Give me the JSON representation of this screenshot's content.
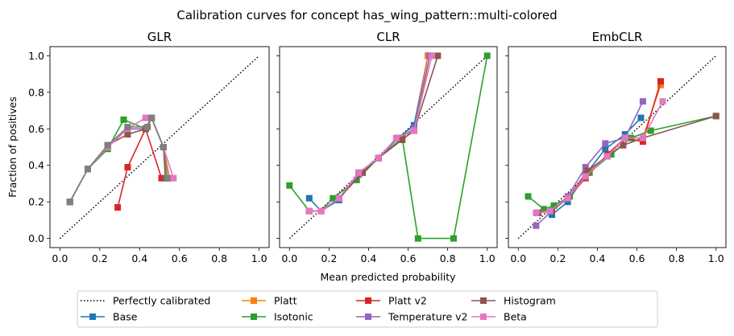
{
  "figure": {
    "suptitle": "Calibration curves for concept has_wing_pattern::multi-colored",
    "xlabel": "Mean predicted probability",
    "ylabel": "Fraction of positives"
  },
  "legend": {
    "placement": "bottom-center",
    "columns": 5,
    "entries": [
      {
        "name": "Perfectly calibrated",
        "color": "#000000",
        "style": "dotted"
      },
      {
        "name": "Base",
        "color": "#1f77b4",
        "style": "line-square"
      },
      {
        "name": "Platt",
        "color": "#ff7f0e",
        "style": "line-square"
      },
      {
        "name": "Isotonic",
        "color": "#2ca02c",
        "style": "line-square"
      },
      {
        "name": "Platt v2",
        "color": "#d62728",
        "style": "line-square"
      },
      {
        "name": "Temperature v2",
        "color": "#9467bd",
        "style": "line-square"
      },
      {
        "name": "Histogram",
        "color": "#8c564b",
        "style": "line-square"
      },
      {
        "name": "Beta",
        "color": "#e377c2",
        "style": "line-square"
      }
    ]
  },
  "chart_data": [
    {
      "type": "line",
      "title": "GLR",
      "xlim": [
        -0.05,
        1.05
      ],
      "ylim": [
        -0.05,
        1.05
      ],
      "xticks": [
        "0.0",
        "0.2",
        "0.4",
        "0.6",
        "0.8",
        "1.0"
      ],
      "yticks": [
        "0.0",
        "0.2",
        "0.4",
        "0.6",
        "0.8",
        "1.0"
      ],
      "series": [
        {
          "name": "Base",
          "color": "#1f77b4",
          "points": [
            [
              0.05,
              0.2
            ],
            [
              0.14,
              0.38
            ],
            [
              0.24,
              0.5
            ],
            [
              0.34,
              0.6
            ],
            [
              0.43,
              0.6
            ],
            [
              0.46,
              0.66
            ],
            [
              0.52,
              0.5
            ],
            [
              0.55,
              0.33
            ]
          ]
        },
        {
          "name": "Platt",
          "color": "#ff7f0e",
          "points": [
            [
              0.05,
              0.2
            ],
            [
              0.14,
              0.38
            ],
            [
              0.24,
              0.5
            ],
            [
              0.34,
              0.6
            ],
            [
              0.43,
              0.6
            ],
            [
              0.46,
              0.66
            ],
            [
              0.52,
              0.5
            ],
            [
              0.55,
              0.33
            ]
          ]
        },
        {
          "name": "Isotonic",
          "color": "#2ca02c",
          "points": [
            [
              0.05,
              0.2
            ],
            [
              0.14,
              0.38
            ],
            [
              0.24,
              0.49
            ],
            [
              0.32,
              0.65
            ],
            [
              0.43,
              0.6
            ],
            [
              0.46,
              0.66
            ],
            [
              0.52,
              0.5
            ],
            [
              0.53,
              0.33
            ]
          ]
        },
        {
          "name": "Platt v2",
          "color": "#d62728",
          "points": [
            [
              0.29,
              0.17
            ],
            [
              0.34,
              0.39
            ],
            [
              0.43,
              0.6
            ],
            [
              0.51,
              0.33
            ]
          ]
        },
        {
          "name": "Temperature v2",
          "color": "#9467bd",
          "points": [
            [
              0.05,
              0.2
            ],
            [
              0.14,
              0.38
            ],
            [
              0.24,
              0.51
            ],
            [
              0.34,
              0.6
            ],
            [
              0.43,
              0.6
            ],
            [
              0.46,
              0.66
            ],
            [
              0.52,
              0.5
            ]
          ]
        },
        {
          "name": "Histogram",
          "color": "#8c564b",
          "points": [
            [
              0.05,
              0.2
            ],
            [
              0.14,
              0.38
            ],
            [
              0.24,
              0.51
            ],
            [
              0.34,
              0.57
            ],
            [
              0.43,
              0.6
            ],
            [
              0.46,
              0.66
            ],
            [
              0.52,
              0.5
            ],
            [
              0.53,
              0.33
            ]
          ]
        },
        {
          "name": "Beta",
          "color": "#e377c2",
          "points": [
            [
              0.05,
              0.2
            ],
            [
              0.14,
              0.38
            ],
            [
              0.24,
              0.5
            ],
            [
              0.34,
              0.6
            ],
            [
              0.43,
              0.66
            ],
            [
              0.46,
              0.66
            ],
            [
              0.52,
              0.5
            ],
            [
              0.57,
              0.33
            ]
          ]
        },
        {
          "name": "",
          "color": "#7f7f7f",
          "points": [
            [
              0.05,
              0.2
            ],
            [
              0.14,
              0.38
            ],
            [
              0.24,
              0.51
            ],
            [
              0.34,
              0.61
            ],
            [
              0.44,
              0.61
            ],
            [
              0.46,
              0.66
            ],
            [
              0.52,
              0.5
            ],
            [
              0.54,
              0.33
            ]
          ]
        }
      ]
    },
    {
      "type": "line",
      "title": "CLR",
      "xlim": [
        -0.05,
        1.05
      ],
      "ylim": [
        -0.05,
        1.05
      ],
      "xticks": [
        "0.0",
        "0.2",
        "0.4",
        "0.6",
        "0.8",
        "1.0"
      ],
      "yticks": [
        "0.0",
        "0.2",
        "0.4",
        "0.6",
        "0.8",
        "1.0"
      ],
      "series": [
        {
          "name": "Base",
          "color": "#1f77b4",
          "points": [
            [
              0.1,
              0.22
            ],
            [
              0.16,
              0.15
            ],
            [
              0.25,
              0.21
            ],
            [
              0.35,
              0.36
            ],
            [
              0.45,
              0.44
            ],
            [
              0.55,
              0.55
            ],
            [
              0.63,
              0.62
            ],
            [
              0.7,
              1.0
            ]
          ]
        },
        {
          "name": "Platt",
          "color": "#ff7f0e",
          "points": [
            [
              0.1,
              0.15
            ],
            [
              0.16,
              0.15
            ],
            [
              0.25,
              0.22
            ],
            [
              0.35,
              0.35
            ],
            [
              0.45,
              0.44
            ],
            [
              0.55,
              0.55
            ],
            [
              0.63,
              0.59
            ],
            [
              0.7,
              1.0
            ]
          ]
        },
        {
          "name": "Isotonic",
          "color": "#2ca02c",
          "points": [
            [
              0.0,
              0.29
            ],
            [
              0.1,
              0.15
            ],
            [
              0.16,
              0.15
            ],
            [
              0.22,
              0.22
            ],
            [
              0.34,
              0.32
            ],
            [
              0.45,
              0.44
            ],
            [
              0.57,
              0.55
            ],
            [
              0.65,
              0.0
            ],
            [
              0.83,
              0.0
            ],
            [
              1.0,
              1.0
            ]
          ]
        },
        {
          "name": "Platt v2",
          "color": "#d62728",
          "points": [
            [
              0.1,
              0.15
            ],
            [
              0.16,
              0.15
            ],
            [
              0.25,
              0.22
            ],
            [
              0.35,
              0.35
            ],
            [
              0.45,
              0.44
            ],
            [
              0.55,
              0.55
            ],
            [
              0.63,
              0.59
            ],
            [
              0.71,
              1.0
            ]
          ]
        },
        {
          "name": "Temperature v2",
          "color": "#9467bd",
          "points": [
            [
              0.1,
              0.15
            ],
            [
              0.16,
              0.15
            ],
            [
              0.25,
              0.22
            ],
            [
              0.35,
              0.35
            ],
            [
              0.45,
              0.44
            ],
            [
              0.55,
              0.55
            ],
            [
              0.63,
              0.6
            ],
            [
              0.71,
              1.0
            ]
          ]
        },
        {
          "name": "Histogram",
          "color": "#8c564b",
          "points": [
            [
              0.1,
              0.15
            ],
            [
              0.16,
              0.15
            ],
            [
              0.25,
              0.22
            ],
            [
              0.37,
              0.36
            ],
            [
              0.45,
              0.44
            ],
            [
              0.57,
              0.54
            ],
            [
              0.63,
              0.59
            ],
            [
              0.75,
              1.0
            ]
          ]
        },
        {
          "name": "Beta",
          "color": "#e377c2",
          "points": [
            [
              0.1,
              0.15
            ],
            [
              0.16,
              0.15
            ],
            [
              0.25,
              0.22
            ],
            [
              0.35,
              0.36
            ],
            [
              0.45,
              0.44
            ],
            [
              0.54,
              0.55
            ],
            [
              0.63,
              0.59
            ],
            [
              0.72,
              1.0
            ]
          ]
        }
      ]
    },
    {
      "type": "line",
      "title": "EmbCLR",
      "xlim": [
        -0.05,
        1.05
      ],
      "ylim": [
        -0.05,
        1.05
      ],
      "xticks": [
        "0.0",
        "0.2",
        "0.4",
        "0.6",
        "0.8",
        "1.0"
      ],
      "yticks": [
        "0.0",
        "0.2",
        "0.4",
        "0.6",
        "0.8",
        "1.0"
      ],
      "series": [
        {
          "name": "Base",
          "color": "#1f77b4",
          "points": [
            [
              0.17,
              0.13
            ],
            [
              0.25,
              0.2
            ],
            [
              0.34,
              0.35
            ],
            [
              0.44,
              0.49
            ],
            [
              0.54,
              0.57
            ],
            [
              0.62,
              0.66
            ]
          ]
        },
        {
          "name": "Platt",
          "color": "#ff7f0e",
          "points": [
            [
              0.1,
              0.14
            ],
            [
              0.17,
              0.15
            ],
            [
              0.25,
              0.22
            ],
            [
              0.35,
              0.36
            ],
            [
              0.45,
              0.45
            ],
            [
              0.54,
              0.55
            ],
            [
              0.63,
              0.55
            ],
            [
              0.72,
              0.84
            ]
          ]
        },
        {
          "name": "Isotonic",
          "color": "#2ca02c",
          "points": [
            [
              0.05,
              0.23
            ],
            [
              0.13,
              0.16
            ],
            [
              0.18,
              0.18
            ],
            [
              0.26,
              0.23
            ],
            [
              0.36,
              0.36
            ],
            [
              0.47,
              0.46
            ],
            [
              0.57,
              0.55
            ],
            [
              0.67,
              0.59
            ],
            [
              1.0,
              0.67
            ]
          ]
        },
        {
          "name": "Platt v2",
          "color": "#d62728",
          "points": [
            [
              0.1,
              0.14
            ],
            [
              0.17,
              0.15
            ],
            [
              0.25,
              0.22
            ],
            [
              0.34,
              0.33
            ],
            [
              0.45,
              0.46
            ],
            [
              0.54,
              0.55
            ],
            [
              0.63,
              0.53
            ],
            [
              0.72,
              0.86
            ]
          ]
        },
        {
          "name": "Temperature v2",
          "color": "#9467bd",
          "points": [
            [
              0.09,
              0.07
            ],
            [
              0.17,
              0.15
            ],
            [
              0.25,
              0.23
            ],
            [
              0.34,
              0.39
            ],
            [
              0.44,
              0.52
            ],
            [
              0.54,
              0.55
            ],
            [
              0.63,
              0.75
            ]
          ]
        },
        {
          "name": "Histogram",
          "color": "#8c564b",
          "points": [
            [
              0.1,
              0.14
            ],
            [
              0.17,
              0.15
            ],
            [
              0.25,
              0.22
            ],
            [
              0.35,
              0.37
            ],
            [
              0.45,
              0.45
            ],
            [
              0.53,
              0.51
            ],
            [
              0.63,
              0.55
            ],
            [
              1.0,
              0.67
            ]
          ]
        },
        {
          "name": "Beta",
          "color": "#e377c2",
          "points": [
            [
              0.09,
              0.14
            ],
            [
              0.16,
              0.15
            ],
            [
              0.25,
              0.22
            ],
            [
              0.34,
              0.34
            ],
            [
              0.45,
              0.45
            ],
            [
              0.54,
              0.55
            ],
            [
              0.63,
              0.55
            ],
            [
              0.73,
              0.75
            ]
          ]
        }
      ]
    }
  ]
}
